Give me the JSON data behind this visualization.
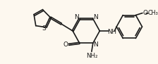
{
  "bg_color": "#fdf8ef",
  "bond_color": "#1a1a1a",
  "lw": 1.2,
  "figsize": [
    2.24,
    0.91
  ],
  "dpi": 100,
  "xlim": [
    0,
    224
  ],
  "ylim": [
    91,
    0
  ]
}
